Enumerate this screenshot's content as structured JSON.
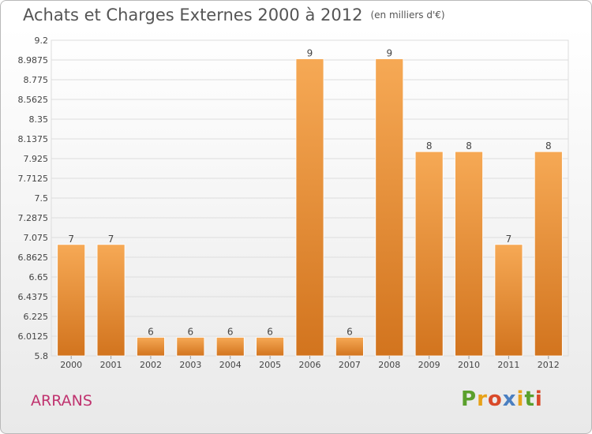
{
  "title": "Achats et Charges Externes 2000 à 2012",
  "unit": "(en milliers d'€)",
  "commune": "ARRANS",
  "logo": {
    "text": "Proxiti",
    "colors": [
      "#5aa02c",
      "#e7a21a",
      "#d94a2a",
      "#4a7fc1",
      "#e7a21a",
      "#5aa02c",
      "#d94a2a"
    ]
  },
  "colors": {
    "bar_top": "#f6a955",
    "bar_bottom": "#d2741e",
    "title": "#555555",
    "commune": "#c0336f"
  },
  "chart_data": {
    "type": "bar",
    "categories": [
      "2000",
      "2001",
      "2002",
      "2003",
      "2004",
      "2005",
      "2006",
      "2007",
      "2008",
      "2009",
      "2010",
      "2011",
      "2012"
    ],
    "values": [
      7,
      7,
      6,
      6,
      6,
      6,
      9,
      6,
      9,
      8,
      8,
      7,
      8
    ],
    "bar_tops": [
      7.0,
      7.0,
      6.0,
      6.0,
      6.0,
      6.0,
      9.0,
      6.0,
      9.0,
      8.0,
      8.0,
      7.0,
      8.0
    ],
    "data_labels": [
      "7",
      "7",
      "6",
      "6",
      "6",
      "6",
      "9",
      "6",
      "9",
      "8",
      "8",
      "7",
      "8"
    ],
    "ylim": [
      5.8,
      9.2
    ],
    "yticks": [
      "5.8",
      "6.0125",
      "6.225",
      "6.4375",
      "6.65",
      "6.8625",
      "7.075",
      "7.2875",
      "7.5",
      "7.7125",
      "7.925",
      "8.1375",
      "8.35",
      "8.5625",
      "8.775",
      "8.9875",
      "9.2"
    ],
    "ytick_values": [
      5.8,
      6.0125,
      6.225,
      6.4375,
      6.65,
      6.8625,
      7.075,
      7.2875,
      7.5,
      7.7125,
      7.925,
      8.1375,
      8.35,
      8.5625,
      8.775,
      8.9875,
      9.2
    ],
    "grid": true
  }
}
